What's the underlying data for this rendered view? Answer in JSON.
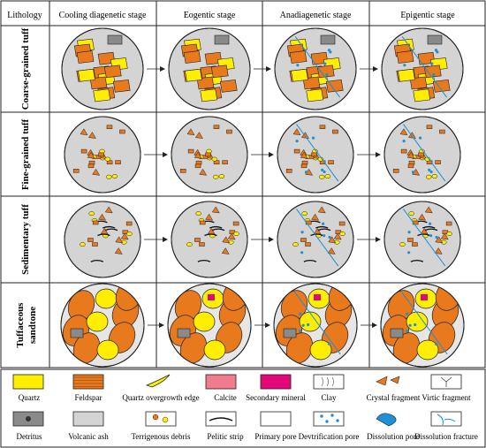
{
  "header": {
    "lithology": "Lithology",
    "stages": [
      "Cooling diagenetic stage",
      "Eogentic stage",
      "Anadiagenetic stage",
      "Epigentic stage"
    ]
  },
  "rows": [
    {
      "label": "Coarse-grained tuff",
      "lines": [
        "Coarse-grained tuff"
      ]
    },
    {
      "label": "Fine-grained tuff",
      "lines": [
        "Fine-grained tuff"
      ]
    },
    {
      "label": "Sedimentary tuff",
      "lines": [
        "Sedimentary tuff"
      ]
    },
    {
      "label": "Tuffaceous sandtone",
      "lines": [
        "Tuffaceous",
        "sandtone"
      ]
    }
  ],
  "legend": {
    "row1": [
      "Quartz",
      "Feldspar",
      "Quartz overgrowth edge",
      "Calcite",
      "Secondary mineral",
      "Clay",
      "Crystal fragment",
      "Virtic fragment"
    ],
    "row2": [
      "Detritus",
      "Volcanic ash",
      "Terrigenous debris",
      "Pelitic strip",
      "Primary pore",
      "Devtrification pore",
      "Dissolution pore",
      "Dissolution fracture"
    ]
  },
  "colors": {
    "quartz": "#ffee00",
    "feldspar": "#e8791c",
    "calcite": "#f07b8c",
    "secondary": "#e3087a",
    "ash": "#d4d4d4",
    "dissolution": "#1e90d6",
    "detritus": "#8a8a8a"
  }
}
